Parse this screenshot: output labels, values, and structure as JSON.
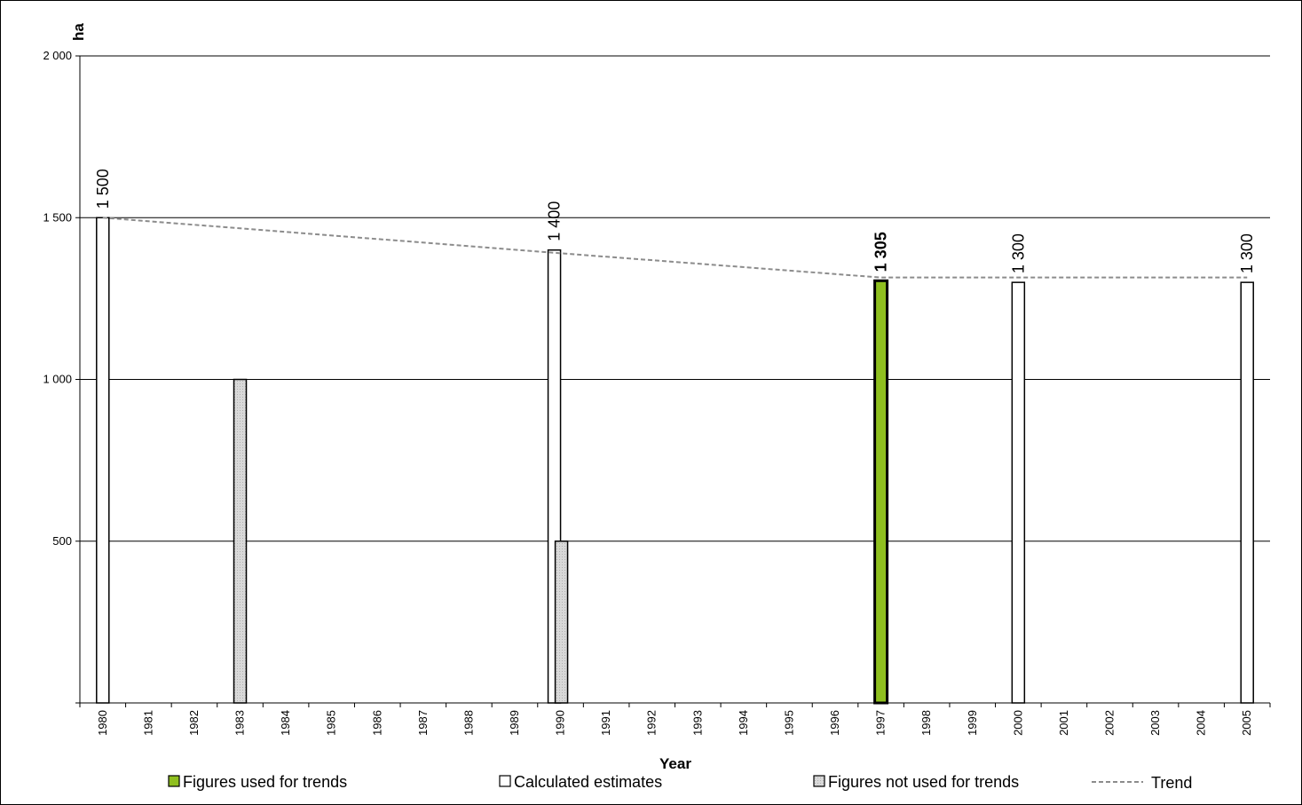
{
  "chart_data": {
    "type": "bar",
    "ylabel": "ha",
    "xlabel": "Year",
    "ylim": [
      0,
      2000
    ],
    "yticks": [
      {
        "value": 500,
        "label": "500"
      },
      {
        "value": 1000,
        "label": "1 000"
      },
      {
        "value": 1500,
        "label": "1 500"
      },
      {
        "value": 2000,
        "label": "2 000"
      }
    ],
    "grid": true,
    "categories": [
      "1980",
      "1981",
      "1982",
      "1983",
      "1984",
      "1985",
      "1986",
      "1987",
      "1988",
      "1989",
      "1990",
      "1991",
      "1992",
      "1993",
      "1994",
      "1995",
      "1996",
      "1997",
      "1998",
      "1999",
      "2000",
      "2001",
      "2002",
      "2003",
      "2004",
      "2005"
    ],
    "series": [
      {
        "key": "calculated",
        "name": "Calculated estimates",
        "color": "#ffffff",
        "points": [
          {
            "year": "1980",
            "value": 1500,
            "label": "1 500"
          },
          {
            "year": "1990",
            "value": 1400,
            "label": "1 400"
          },
          {
            "year": "2000",
            "value": 1300,
            "label": "1 300"
          },
          {
            "year": "2005",
            "value": 1300,
            "label": "1 300"
          }
        ]
      },
      {
        "key": "used",
        "name": "Figures used for trends",
        "color": "#8fbf1f",
        "points": [
          {
            "year": "1997",
            "value": 1305,
            "label": "1 305"
          }
        ]
      },
      {
        "key": "notused",
        "name": "Figures not used for trends",
        "color": "#d9d9d9",
        "points": [
          {
            "year": "1983",
            "value": 1000,
            "label": ""
          },
          {
            "year": "1990",
            "value": 500,
            "label": ""
          }
        ]
      }
    ],
    "trend": {
      "name": "Trend",
      "color": "#8c8c8c",
      "points": [
        {
          "year": "1980",
          "value": 1500
        },
        {
          "year": "1990",
          "value": 1390
        },
        {
          "year": "1997",
          "value": 1315
        },
        {
          "year": "2005",
          "value": 1315
        }
      ]
    },
    "legend": {
      "placement": "bottom",
      "items": [
        {
          "key": "used",
          "label": "Figures used for trends",
          "color": "#8fbf1f",
          "kind": "box"
        },
        {
          "key": "calculated",
          "label": "Calculated estimates",
          "color": "#ffffff",
          "kind": "box"
        },
        {
          "key": "notused",
          "label": "Figures not used for trends",
          "color": "#d9d9d9",
          "kind": "box"
        },
        {
          "key": "trend",
          "label": "Trend",
          "color": "#8c8c8c",
          "kind": "dash"
        }
      ]
    }
  }
}
